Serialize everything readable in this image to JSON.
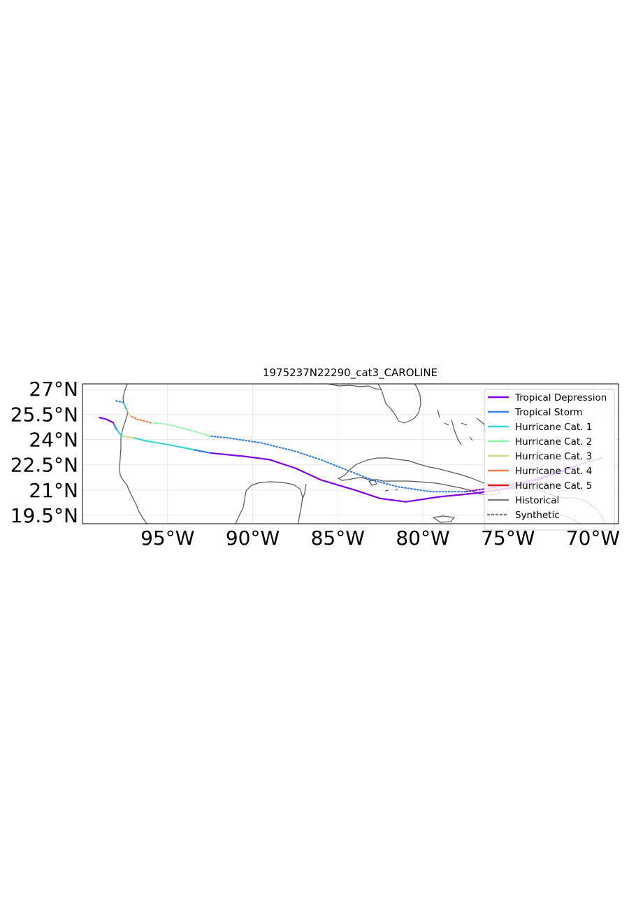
{
  "title": "1975237N22290_cat3_CAROLINE",
  "map": {
    "lon_range": [
      -100,
      -68.5
    ],
    "lat_range": [
      19.0,
      27.3
    ],
    "lon_ticks": [
      -95,
      -90,
      -85,
      -80,
      -75,
      -70
    ],
    "lat_ticks": [
      19.5,
      21,
      22.5,
      24,
      25.5,
      27
    ],
    "lon_tick_labels": [
      "95°W",
      "90°W",
      "85°W",
      "80°W",
      "75°W",
      "70°W"
    ],
    "lat_tick_labels": [
      "19.5°N",
      "21°N",
      "22.5°N",
      "24°N",
      "25.5°N",
      "27°N"
    ],
    "grid": true,
    "coastline_color": "#555555",
    "gridline_color": "#e6e6e6"
  },
  "legend": {
    "placement": "top-right",
    "entries": [
      {
        "label": "Tropical Depression",
        "color": "#8000f0",
        "style": "solid"
      },
      {
        "label": "Tropical Storm",
        "color": "#3580f0",
        "style": "solid"
      },
      {
        "label": "Hurricane Cat. 1",
        "color": "#36d6d6",
        "style": "solid"
      },
      {
        "label": "Hurricane Cat. 2",
        "color": "#8af5a8",
        "style": "solid"
      },
      {
        "label": "Hurricane Cat. 3",
        "color": "#cfde86",
        "style": "solid"
      },
      {
        "label": "Hurricane Cat. 4",
        "color": "#ff7a45",
        "style": "solid"
      },
      {
        "label": "Hurricane Cat. 5",
        "color": "#f01010",
        "style": "solid"
      },
      {
        "label": "Historical",
        "color": "#808080",
        "style": "solid"
      },
      {
        "label": "Synthetic",
        "color": "#808080",
        "style": "dotted"
      }
    ]
  },
  "chart_data": {
    "type": "line",
    "x_unit": "longitude (°)",
    "y_unit": "latitude (°)",
    "series": [
      {
        "name": "Historical",
        "style": "solid",
        "segments": [
          {
            "category": "Tropical Depression",
            "points": [
              [
                -71,
                22.4
              ],
              [
                -73,
                21.7
              ],
              [
                -75,
                21.1
              ],
              [
                -77,
                20.8
              ],
              [
                -79,
                20.6
              ],
              [
                -81,
                20.3
              ],
              [
                -82.5,
                20.5
              ],
              [
                -84,
                21.0
              ],
              [
                -86,
                21.6
              ],
              [
                -87.5,
                22.3
              ],
              [
                -89,
                22.8
              ],
              [
                -90.5,
                23.0
              ],
              [
                -92.5,
                23.2
              ]
            ]
          },
          {
            "category": "Tropical Storm",
            "points": [
              [
                -92.5,
                23.2
              ],
              [
                -93.5,
                23.4
              ]
            ]
          },
          {
            "category": "Hurricane Cat. 1",
            "points": [
              [
                -93.5,
                23.4
              ],
              [
                -95,
                23.7
              ],
              [
                -96.2,
                23.9
              ],
              [
                -97,
                24.1
              ]
            ]
          },
          {
            "category": "Hurricane Cat. 3",
            "points": [
              [
                -97,
                24.1
              ],
              [
                -97.7,
                24.2
              ]
            ]
          },
          {
            "category": "Hurricane Cat. 1",
            "points": [
              [
                -97.7,
                24.2
              ],
              [
                -98.0,
                24.6
              ]
            ]
          },
          {
            "category": "Tropical Storm",
            "points": [
              [
                -98.0,
                24.6
              ],
              [
                -98.2,
                25.0
              ]
            ]
          },
          {
            "category": "Tropical Depression",
            "points": [
              [
                -98.2,
                25.0
              ],
              [
                -98.6,
                25.2
              ],
              [
                -99.0,
                25.3
              ]
            ]
          }
        ]
      },
      {
        "name": "Synthetic",
        "style": "dotted",
        "segments": [
          {
            "category": "Tropical Depression",
            "points": [
              [
                -69.5,
                22.9
              ],
              [
                -71.5,
                22.3
              ],
              [
                -73.5,
                21.6
              ],
              [
                -75.5,
                21.2
              ],
              [
                -77.5,
                20.9
              ]
            ]
          },
          {
            "category": "Tropical Storm",
            "points": [
              [
                -77.5,
                20.9
              ],
              [
                -79.5,
                20.9
              ],
              [
                -81.5,
                21.2
              ],
              [
                -83.0,
                21.6
              ],
              [
                -84.5,
                22.2
              ],
              [
                -86,
                22.8
              ],
              [
                -87.5,
                23.3
              ],
              [
                -89.5,
                23.8
              ],
              [
                -91.5,
                24.1
              ],
              [
                -92.5,
                24.2
              ]
            ]
          },
          {
            "category": "Hurricane Cat. 2",
            "points": [
              [
                -92.5,
                24.2
              ],
              [
                -93.5,
                24.5
              ],
              [
                -95,
                24.9
              ],
              [
                -96.0,
                25.0
              ]
            ]
          },
          {
            "category": "Hurricane Cat. 4",
            "points": [
              [
                -96.0,
                25.0
              ],
              [
                -96.8,
                25.2
              ],
              [
                -97.2,
                25.4
              ]
            ]
          },
          {
            "category": "Hurricane Cat. 3",
            "points": [
              [
                -97.2,
                25.4
              ],
              [
                -97.4,
                25.8
              ]
            ]
          },
          {
            "category": "Hurricane Cat. 1",
            "points": [
              [
                -97.4,
                25.8
              ],
              [
                -97.6,
                26.2
              ]
            ]
          },
          {
            "category": "Tropical Storm",
            "points": [
              [
                -97.6,
                26.2
              ],
              [
                -98.1,
                26.3
              ]
            ]
          }
        ]
      }
    ]
  }
}
